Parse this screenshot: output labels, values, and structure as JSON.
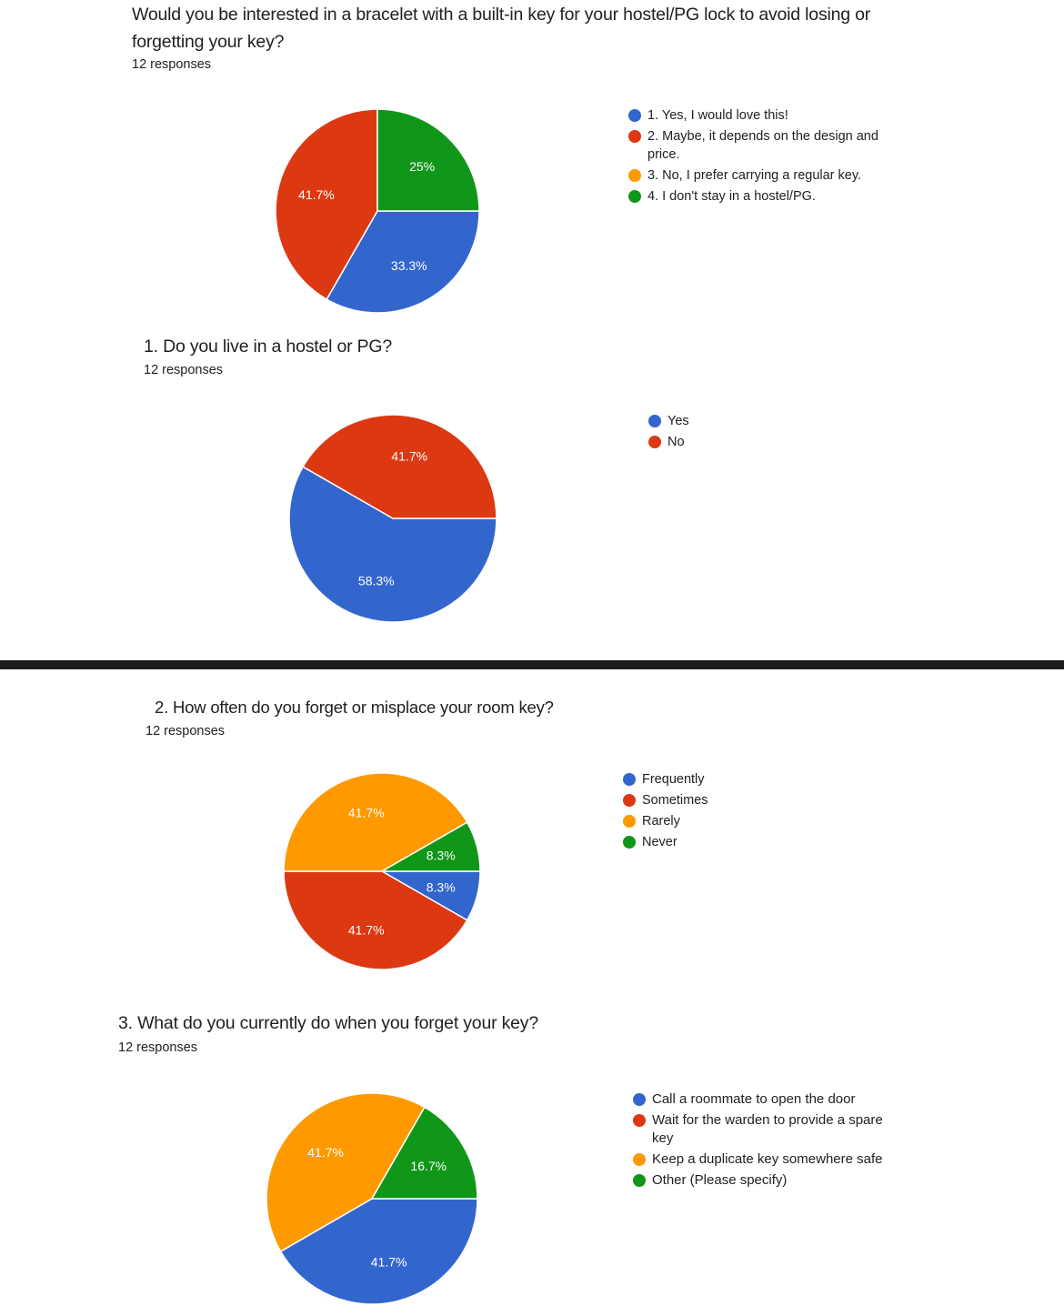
{
  "colors": {
    "blue": "#3366cc",
    "red": "#dc3912",
    "orange": "#ff9900",
    "green": "#109618"
  },
  "questions": [
    {
      "title": "Would you be interested in a bracelet with a built-in key for your hostel/PG lock to avoid losing or forgetting your key?",
      "responses": "12 responses",
      "legend": [
        "1. Yes, I would love this!",
        "2. Maybe, it depends on the design and price.",
        "3. No, I prefer carrying a regular key.",
        "4. I don't stay in a hostel/PG."
      ]
    },
    {
      "title": "1. Do you live in a hostel or PG?",
      "responses": "12 responses",
      "legend": [
        "Yes",
        "No"
      ]
    },
    {
      "title": "2. How often do you forget or misplace your room key?",
      "responses": "12 responses",
      "legend": [
        "Frequently",
        "Sometimes",
        "Rarely",
        "Never"
      ]
    },
    {
      "title": "3. What do you currently do when you forget your key?",
      "responses": "12 responses",
      "legend": [
        "Call a roommate to open the door",
        "Wait for the warden to provide a spare key",
        "Keep a duplicate key somewhere safe",
        "Other (Please specify)"
      ]
    }
  ],
  "chart_data": [
    {
      "type": "pie",
      "title": "Would you be interested in a bracelet with a built-in key for your hostel/PG lock to avoid losing or forgetting your key?",
      "subtitle": "12 responses",
      "categories": [
        "1. Yes, I would love this!",
        "2. Maybe, it depends on the design and price.",
        "3. No, I prefer carrying a regular key.",
        "4. I don't stay in a hostel/PG."
      ],
      "values": [
        33.3,
        41.7,
        0,
        25
      ],
      "labels": [
        "33.3%",
        "41.7%",
        "",
        "25%"
      ],
      "colors": [
        "#3366cc",
        "#dc3912",
        "#ff9900",
        "#109618"
      ],
      "legend_position": "right"
    },
    {
      "type": "pie",
      "title": "1. Do you live in a hostel or PG?",
      "subtitle": "12 responses",
      "categories": [
        "Yes",
        "No"
      ],
      "values": [
        58.3,
        41.7
      ],
      "labels": [
        "58.3%",
        "41.7%"
      ],
      "colors": [
        "#3366cc",
        "#dc3912"
      ],
      "legend_position": "right"
    },
    {
      "type": "pie",
      "title": "2. How often do you forget or misplace your room key?",
      "subtitle": "12 responses",
      "categories": [
        "Frequently",
        "Sometimes",
        "Rarely",
        "Never"
      ],
      "values": [
        8.3,
        41.7,
        41.7,
        8.3
      ],
      "labels": [
        "8.3%",
        "41.7%",
        "41.7%",
        "8.3%"
      ],
      "colors": [
        "#3366cc",
        "#dc3912",
        "#ff9900",
        "#109618"
      ],
      "legend_position": "right"
    },
    {
      "type": "pie",
      "title": "3. What do you currently do when you forget your key?",
      "subtitle": "12 responses",
      "categories": [
        "Call a roommate to open the door",
        "Wait for the warden to provide a spare key",
        "Keep a duplicate key somewhere safe",
        "Other (Please specify)"
      ],
      "values": [
        41.7,
        0,
        41.7,
        16.7
      ],
      "labels": [
        "41.7%",
        "",
        "41.7%",
        "16.7%"
      ],
      "colors": [
        "#3366cc",
        "#dc3912",
        "#ff9900",
        "#109618"
      ],
      "legend_position": "right"
    }
  ]
}
